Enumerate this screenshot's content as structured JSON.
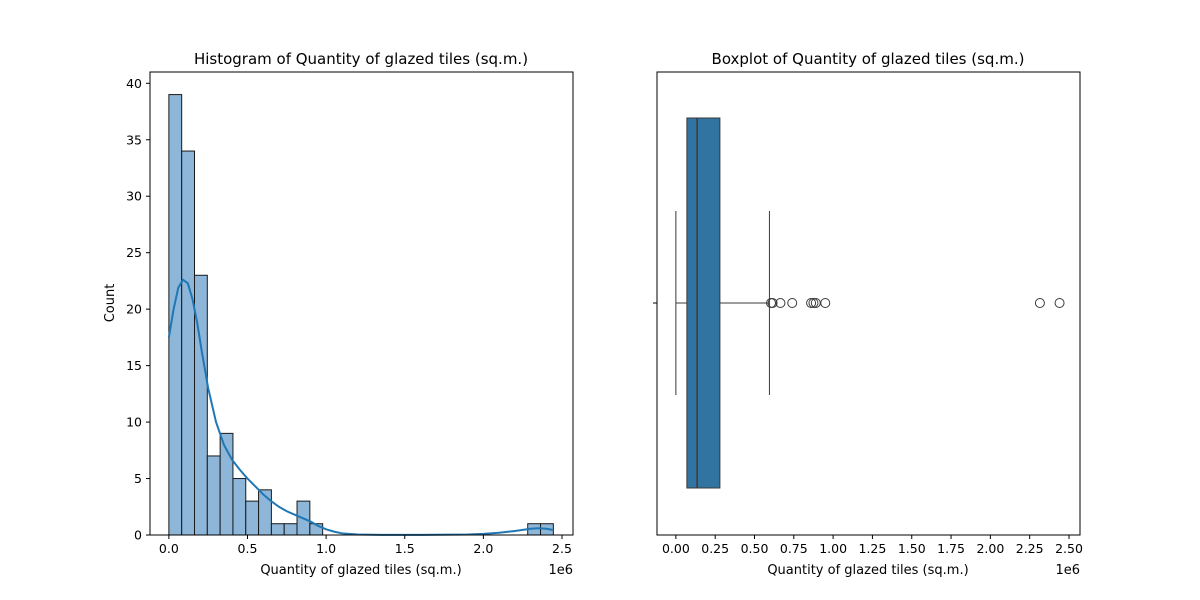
{
  "colors": {
    "hist_fill": "#8db6d9",
    "hist_edge": "#1a1a1a",
    "kde_line": "#1f77b4",
    "box_fill": "#3274a1",
    "box_edge": "#3a3a3a",
    "axis": "#000000"
  },
  "chart_data": [
    {
      "type": "histogram",
      "title": "Histogram of Quantity of glazed tiles (sq.m.)",
      "xlabel": "Quantity of glazed tiles (sq.m.)",
      "ylabel": "Count",
      "x_offset_label": "1e6",
      "xlim": [
        -0.12,
        2.57
      ],
      "ylim": [
        0,
        41
      ],
      "xticks": [
        0.0,
        0.5,
        1.0,
        1.5,
        2.0,
        2.5
      ],
      "xtick_labels": [
        "0.0",
        "0.5",
        "1.0",
        "1.5",
        "2.0",
        "2.5"
      ],
      "yticks": [
        0,
        5,
        10,
        15,
        20,
        25,
        30,
        35,
        40
      ],
      "ytick_labels": [
        "0",
        "5",
        "10",
        "15",
        "20",
        "25",
        "30",
        "35",
        "40"
      ],
      "bin_start": 0.0,
      "bin_width": 0.0815,
      "counts": [
        39,
        34,
        23,
        7,
        9,
        5,
        3,
        4,
        1,
        1,
        3,
        1,
        0,
        0,
        0,
        0,
        0,
        0,
        0,
        0,
        0,
        0,
        0,
        0,
        0,
        0,
        0,
        0,
        1,
        1
      ],
      "kde": {
        "x": [
          0.0,
          0.03,
          0.06,
          0.09,
          0.12,
          0.15,
          0.18,
          0.21,
          0.25,
          0.3,
          0.35,
          0.4,
          0.45,
          0.5,
          0.55,
          0.6,
          0.65,
          0.7,
          0.75,
          0.8,
          0.85,
          0.9,
          0.95,
          1.0,
          1.05,
          1.1,
          1.2,
          1.3,
          1.4,
          1.5,
          1.6,
          1.7,
          1.8,
          1.9,
          2.0,
          2.1,
          2.2,
          2.25,
          2.3,
          2.35,
          2.4,
          2.44
        ],
        "y": [
          17.5,
          20.0,
          21.9,
          22.6,
          22.3,
          20.9,
          18.8,
          16.2,
          13.0,
          10.0,
          8.0,
          6.7,
          5.8,
          5.0,
          4.3,
          3.6,
          3.0,
          2.5,
          2.1,
          1.8,
          1.5,
          1.2,
          0.8,
          0.5,
          0.3,
          0.15,
          0.05,
          0.02,
          0.01,
          0.01,
          0.01,
          0.02,
          0.03,
          0.05,
          0.1,
          0.2,
          0.35,
          0.45,
          0.55,
          0.6,
          0.55,
          0.45
        ]
      }
    },
    {
      "type": "boxplot",
      "title": "Boxplot of Quantity of glazed tiles (sq.m.)",
      "xlabel": "Quantity of glazed tiles (sq.m.)",
      "x_offset_label": "1e6",
      "xlim": [
        -0.12,
        2.57
      ],
      "xticks": [
        0.0,
        0.25,
        0.5,
        0.75,
        1.0,
        1.25,
        1.5,
        1.75,
        2.0,
        2.25,
        2.5
      ],
      "xtick_labels": [
        "0.00",
        "0.25",
        "0.50",
        "0.75",
        "1.00",
        "1.25",
        "1.50",
        "1.75",
        "2.00",
        "2.25",
        "2.50"
      ],
      "stats": {
        "whisker_low": 0.0,
        "q1": 0.07,
        "median": 0.135,
        "q3": 0.28,
        "whisker_high": 0.595
      },
      "outliers": [
        0.605,
        0.615,
        0.665,
        0.74,
        0.86,
        0.875,
        0.89,
        0.95,
        2.315,
        2.44
      ]
    }
  ]
}
